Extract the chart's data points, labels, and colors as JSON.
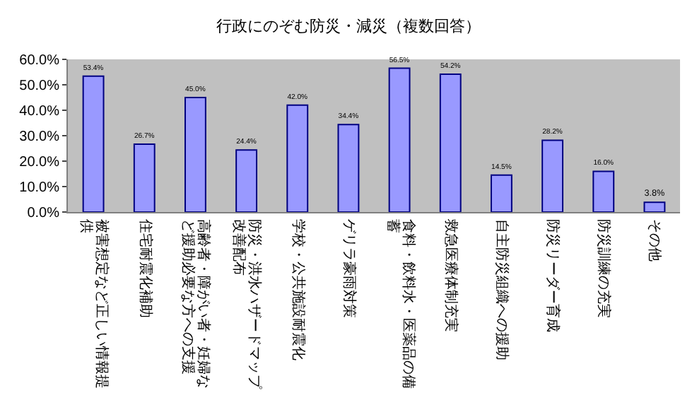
{
  "chart_data": {
    "type": "bar",
    "title": "行政にのぞむ防災・減災（複数回答）",
    "categories": [
      "被害想定など正しい情報提供",
      "住宅耐震化補助",
      "高齢者・障がい者・妊婦など援助必要な方への支援",
      "防災・洪水ハザードマップ改善配布",
      "学校・公共施設耐震化",
      "ゲリラ豪雨対策",
      "食料・飲料水・医薬品の備蓄",
      "救急医療体制充実",
      "自主防災組織への援助",
      "防災リーダー育成",
      "防災訓練の充実",
      "その他"
    ],
    "values": [
      53.4,
      26.7,
      45.0,
      24.4,
      42.0,
      34.4,
      56.5,
      54.2,
      14.5,
      28.2,
      16.0,
      3.8
    ],
    "value_labels": [
      "53.4%",
      "26.7%",
      "45.0%",
      "24.4%",
      "42.0%",
      "34.4%",
      "56.5%",
      "54.2%",
      "14.5%",
      "28.2%",
      "16.0%",
      "3.8%"
    ],
    "color": "#9999ff",
    "ylim": [
      0,
      60
    ],
    "yticks": [
      {
        "value": 0,
        "label": "0.0%"
      },
      {
        "value": 10,
        "label": "10.0%"
      },
      {
        "value": 20,
        "label": "20.0%"
      },
      {
        "value": 30,
        "label": "30.0%"
      },
      {
        "value": 40,
        "label": "40.0%"
      },
      {
        "value": 50,
        "label": "50.0%"
      },
      {
        "value": 60,
        "label": "60.0%"
      }
    ],
    "grid": false,
    "legend": false
  }
}
